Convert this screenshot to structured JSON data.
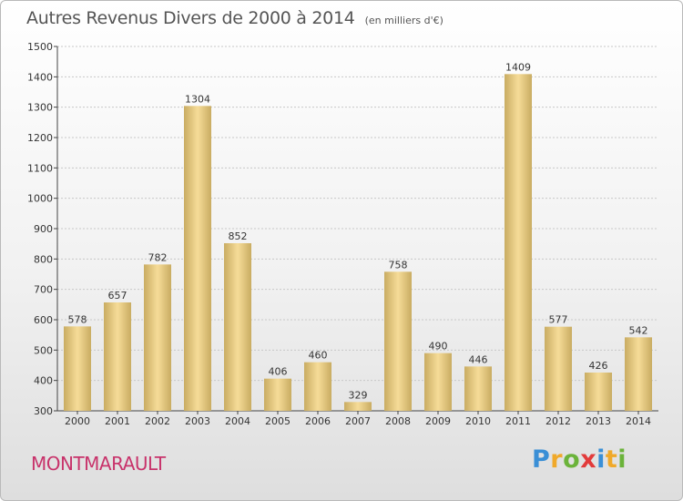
{
  "header": {
    "title": "Autres Revenus Divers de 2000 à 2014",
    "unit": "(en milliers d'€)"
  },
  "commune": "MONTMARAULT",
  "logo": {
    "letters": [
      "P",
      "r",
      "o",
      "x",
      "i",
      "t",
      "i"
    ],
    "colors": [
      "#3a8fd6",
      "#f0a92a",
      "#6bb33a",
      "#e23b3b",
      "#3a8fd6",
      "#f0a92a",
      "#6bb33a"
    ]
  },
  "colors": {
    "bar_light": "#f6dc98",
    "bar_dark": "#c9ac62",
    "grid": "#c8c8c8",
    "axis": "#444444"
  },
  "chart_data": {
    "type": "bar",
    "title": "Autres Revenus Divers de 2000 à 2014",
    "subtitle": "(en milliers d'€)",
    "categories": [
      "2000",
      "2001",
      "2002",
      "2003",
      "2004",
      "2005",
      "2006",
      "2007",
      "2008",
      "2009",
      "2010",
      "2011",
      "2012",
      "2013",
      "2014"
    ],
    "values": [
      578,
      657,
      782,
      1304,
      852,
      406,
      460,
      329,
      758,
      490,
      446,
      1409,
      577,
      426,
      542
    ],
    "ylim": [
      300,
      1500
    ],
    "yticks": [
      300,
      400,
      500,
      600,
      700,
      800,
      900,
      1000,
      1100,
      1200,
      1300,
      1400,
      1500
    ],
    "grid": true,
    "legend": "none"
  }
}
